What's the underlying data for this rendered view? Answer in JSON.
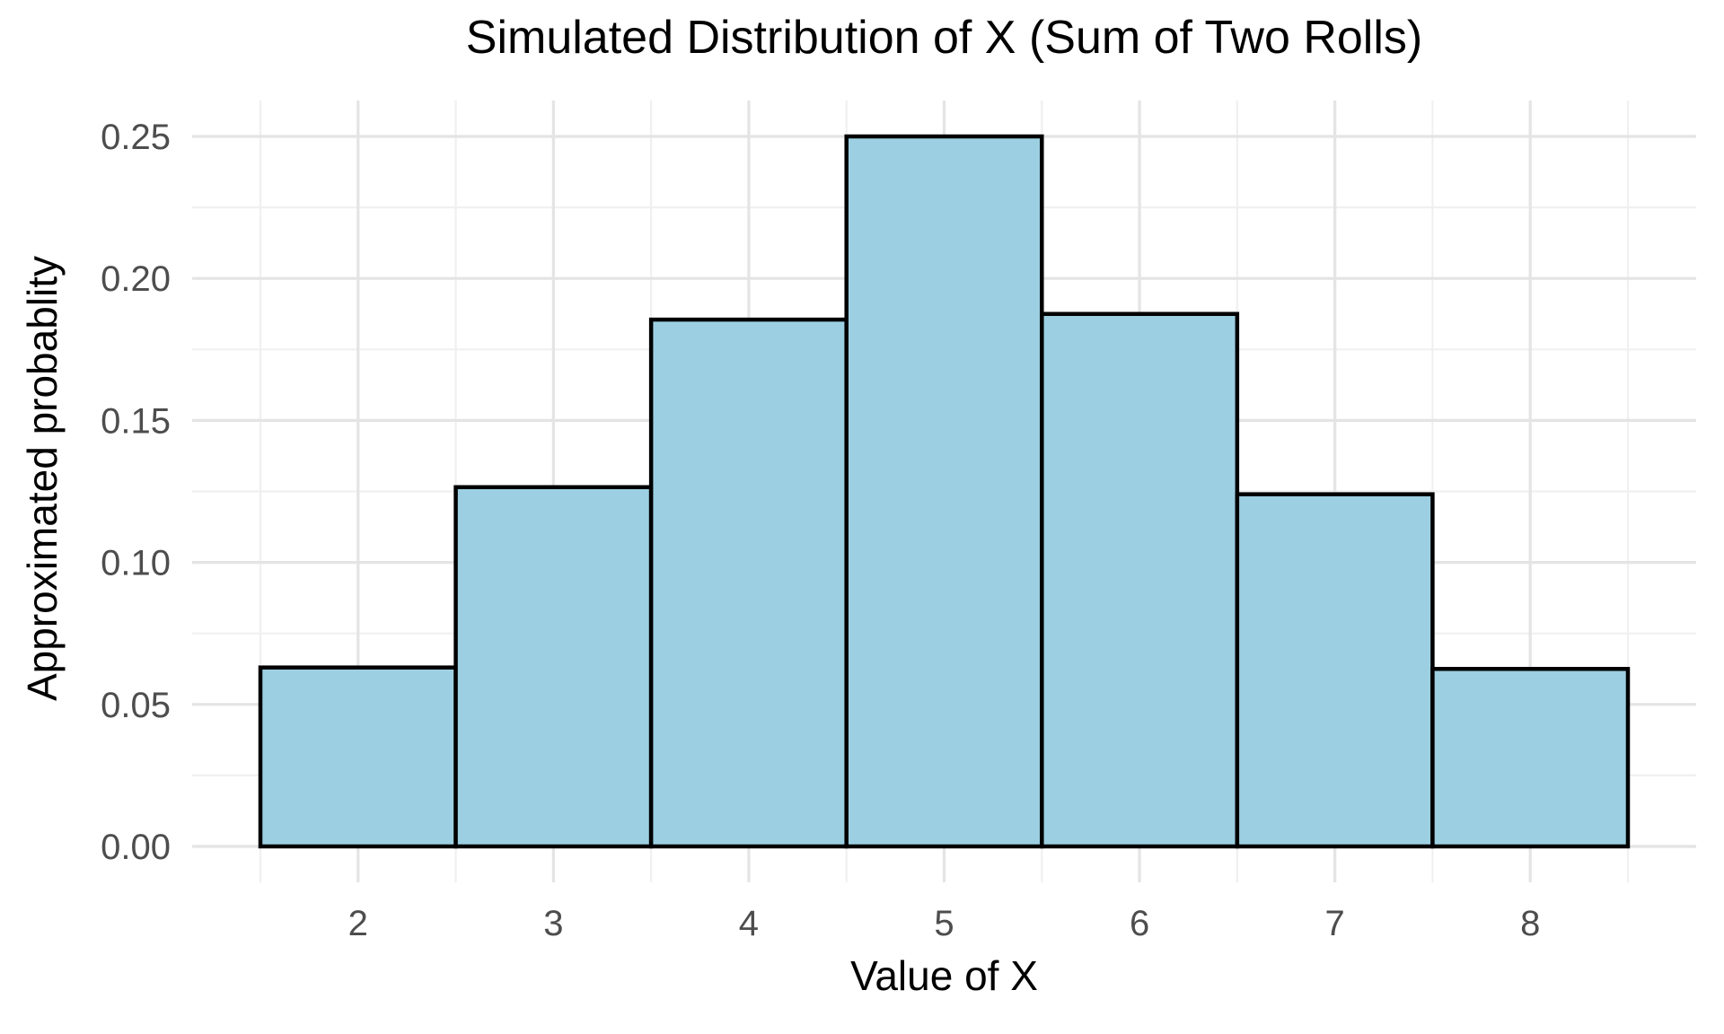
{
  "chart_data": {
    "type": "bar",
    "style": "histogram",
    "title": "Simulated Distribution of X (Sum of Two Rolls)",
    "xlabel": "Value of X",
    "ylabel": "Approximated probablity",
    "categories": [
      2,
      3,
      4,
      5,
      6,
      7,
      8
    ],
    "values": [
      0.063,
      0.1265,
      0.1855,
      0.25,
      0.1875,
      0.124,
      0.0625
    ],
    "bar_width": 1.0,
    "x_tick_labels": [
      "2",
      "3",
      "4",
      "5",
      "6",
      "7",
      "8"
    ],
    "y_ticks": [
      0.0,
      0.05,
      0.1,
      0.15,
      0.2,
      0.25
    ],
    "y_tick_labels": [
      "0.00",
      "0.05",
      "0.10",
      "0.15",
      "0.20",
      "0.25"
    ],
    "y_minor_ticks": [
      0.025,
      0.075,
      0.125,
      0.175,
      0.225
    ],
    "x_minor_ticks": [
      1.5,
      2.5,
      3.5,
      4.5,
      5.5,
      6.5,
      7.5,
      8.5
    ],
    "xlim": [
      1.15,
      8.85
    ],
    "ylim": [
      -0.0125,
      0.2625
    ],
    "grid": "major-and-minor",
    "legend": "none",
    "colors": {
      "bar_fill": "#9DCFE2",
      "bar_stroke": "#000000",
      "grid_major": "#E4E4E4",
      "grid_minor": "#F0F0F0",
      "tick_label": "#4D4D4D",
      "axis_title": "#000000",
      "title": "#000000",
      "background": "#FFFFFF"
    }
  }
}
